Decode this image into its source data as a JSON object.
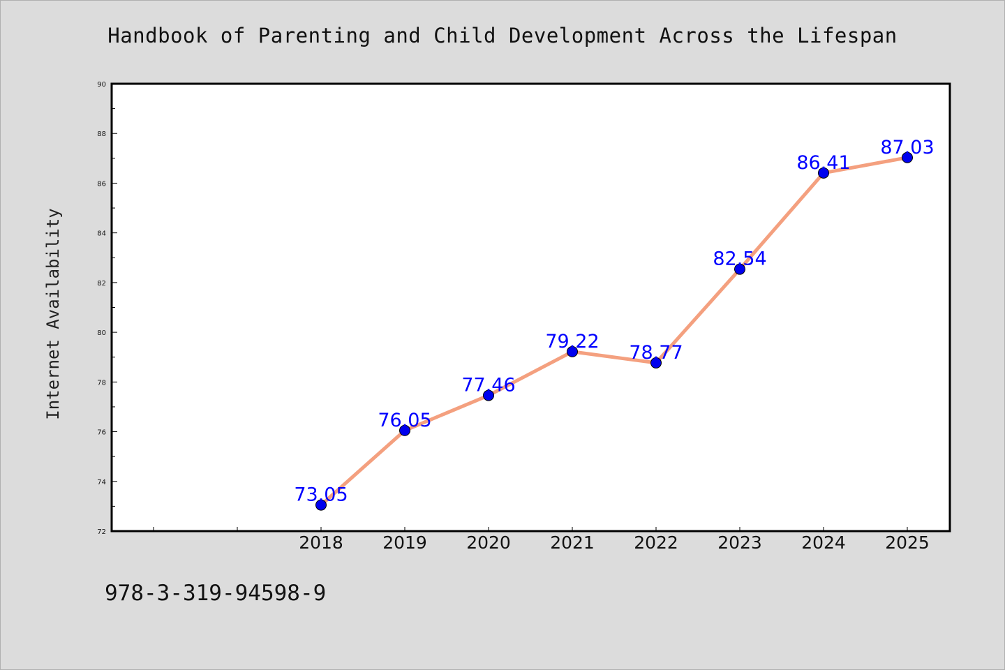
{
  "page": {
    "footer_text": "978-3-319-94598-9"
  },
  "chart_data": {
    "type": "line",
    "title": "Handbook of Parenting and Child Development Across the Lifespan",
    "xlabel": "",
    "ylabel": "Internet Availability",
    "x": [
      "2018",
      "2019",
      "2020",
      "2021",
      "2022",
      "2023",
      "2024",
      "2025"
    ],
    "series": [
      {
        "values": [
          73.05,
          76.05,
          77.46,
          79.22,
          78.77,
          82.54,
          86.41,
          87.03
        ],
        "data_labels": [
          "73.05",
          "76.05",
          "77.46",
          "79.22",
          "78.77",
          "82.54",
          "86.41",
          "87.03"
        ],
        "line_color": "#f4a07f",
        "marker_color": "#0000ee"
      }
    ],
    "ylim": [
      72,
      90
    ],
    "yticks": [
      "72",
      "74",
      "76",
      "78",
      "80",
      "82",
      "84",
      "86",
      "88",
      "90"
    ],
    "y_minor_step": 1,
    "x_leading_empty_slots": 2,
    "grid": false,
    "legend": "none",
    "colors": {
      "background": "#dcdcdc",
      "plot_background": "#ffffff",
      "label_color": "#0000ff"
    }
  }
}
